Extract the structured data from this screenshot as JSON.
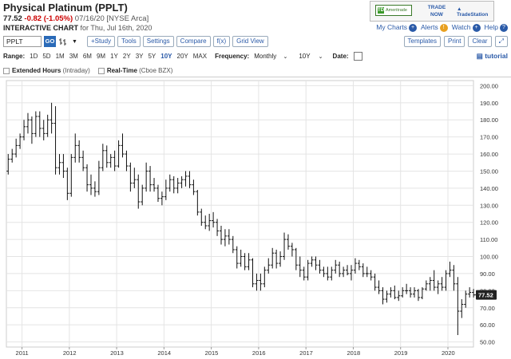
{
  "header": {
    "title": "Physical Platinum (PPLT)",
    "last_price": "77.52",
    "change": "-0.82 (-1.05%)",
    "date_exchange": "07/16/20 [NYSE Arca]",
    "chart_label": "INTERACTIVE CHART",
    "chart_date": "for Thu, Jul 16th, 2020"
  },
  "ad": {
    "td_text": "Ameritrade",
    "td_mark": "TD",
    "trade_now": "TRADE NOW",
    "tradestation": "TradeStation"
  },
  "toplinks": {
    "my_charts": "My Charts",
    "alerts": "Alerts",
    "watch": "Watch",
    "help": "Help"
  },
  "toolbar": {
    "symbol_value": "PPLT",
    "go": "GO",
    "study": "+Study",
    "tools": "Tools",
    "settings": "Settings",
    "compare": "Compare",
    "fx": "f(x)",
    "grid_view": "Grid View",
    "templates": "Templates",
    "print": "Print",
    "clear": "Clear"
  },
  "range_bar": {
    "range_label": "Range:",
    "ranges": [
      "1D",
      "5D",
      "1M",
      "3M",
      "6M",
      "9M",
      "1Y",
      "2Y",
      "3Y",
      "5Y",
      "10Y",
      "20Y",
      "MAX"
    ],
    "active_range": "10Y",
    "frequency_label": "Frequency:",
    "frequency_value": "Monthly",
    "period_value": "10Y",
    "date_label": "Date:",
    "tutorial": "tutorial"
  },
  "options_bar": {
    "extended_label": "Extended Hours",
    "extended_note": "(Intraday)",
    "realtime_label": "Real-Time",
    "realtime_note": "(Cboe BZX)"
  },
  "colors": {
    "link_blue": "#2a5aa8",
    "negative_red": "#cc0000",
    "price_tag": "#222222",
    "bar_color": "#111111"
  },
  "chart_data": {
    "type": "ohlc",
    "frequency": "Monthly",
    "last_price": 77.52,
    "yticks": [
      50,
      60,
      70,
      80,
      90,
      100,
      110,
      120,
      130,
      140,
      150,
      160,
      170,
      180,
      190,
      200
    ],
    "ylim": [
      47,
      203
    ],
    "xticks": [
      "2011",
      "2012",
      "2013",
      "2014",
      "2015",
      "2016",
      "2017",
      "2018",
      "2019",
      "2020"
    ],
    "start_year": 2010.67,
    "end_year": 2020.54,
    "grid": true,
    "bars": [
      {
        "t": "2010-09",
        "o": 150,
        "h": 160,
        "l": 148,
        "c": 157
      },
      {
        "t": "2010-10",
        "o": 157,
        "h": 163,
        "l": 155,
        "c": 160
      },
      {
        "t": "2010-11",
        "o": 160,
        "h": 169,
        "l": 158,
        "c": 165
      },
      {
        "t": "2010-12",
        "o": 165,
        "h": 172,
        "l": 163,
        "c": 170
      },
      {
        "t": "2011-01",
        "o": 170,
        "h": 180,
        "l": 168,
        "c": 176
      },
      {
        "t": "2011-02",
        "o": 176,
        "h": 184,
        "l": 172,
        "c": 180
      },
      {
        "t": "2011-03",
        "o": 180,
        "h": 182,
        "l": 166,
        "c": 172
      },
      {
        "t": "2011-04",
        "o": 172,
        "h": 185,
        "l": 170,
        "c": 182
      },
      {
        "t": "2011-05",
        "o": 182,
        "h": 185,
        "l": 170,
        "c": 175
      },
      {
        "t": "2011-06",
        "o": 175,
        "h": 180,
        "l": 168,
        "c": 172
      },
      {
        "t": "2011-07",
        "o": 172,
        "h": 183,
        "l": 170,
        "c": 180
      },
      {
        "t": "2011-08",
        "o": 180,
        "h": 190,
        "l": 172,
        "c": 178
      },
      {
        "t": "2011-09",
        "o": 178,
        "h": 188,
        "l": 148,
        "c": 152
      },
      {
        "t": "2011-10",
        "o": 152,
        "h": 160,
        "l": 148,
        "c": 155
      },
      {
        "t": "2011-11",
        "o": 155,
        "h": 160,
        "l": 146,
        "c": 150
      },
      {
        "t": "2011-12",
        "o": 150,
        "h": 152,
        "l": 133,
        "c": 137
      },
      {
        "t": "2012-01",
        "o": 137,
        "h": 160,
        "l": 135,
        "c": 158
      },
      {
        "t": "2012-02",
        "o": 158,
        "h": 172,
        "l": 155,
        "c": 165
      },
      {
        "t": "2012-03",
        "o": 165,
        "h": 168,
        "l": 155,
        "c": 158
      },
      {
        "t": "2012-04",
        "o": 158,
        "h": 162,
        "l": 150,
        "c": 152
      },
      {
        "t": "2012-05",
        "o": 152,
        "h": 154,
        "l": 138,
        "c": 142
      },
      {
        "t": "2012-06",
        "o": 142,
        "h": 148,
        "l": 136,
        "c": 140
      },
      {
        "t": "2012-07",
        "o": 140,
        "h": 144,
        "l": 135,
        "c": 138
      },
      {
        "t": "2012-08",
        "o": 138,
        "h": 156,
        "l": 136,
        "c": 152
      },
      {
        "t": "2012-09",
        "o": 152,
        "h": 166,
        "l": 150,
        "c": 162
      },
      {
        "t": "2012-10",
        "o": 162,
        "h": 165,
        "l": 152,
        "c": 155
      },
      {
        "t": "2012-11",
        "o": 155,
        "h": 160,
        "l": 152,
        "c": 158
      },
      {
        "t": "2012-12",
        "o": 158,
        "h": 162,
        "l": 150,
        "c": 153
      },
      {
        "t": "2013-01",
        "o": 153,
        "h": 168,
        "l": 152,
        "c": 165
      },
      {
        "t": "2013-02",
        "o": 165,
        "h": 172,
        "l": 158,
        "c": 160
      },
      {
        "t": "2013-03",
        "o": 160,
        "h": 162,
        "l": 150,
        "c": 153
      },
      {
        "t": "2013-04",
        "o": 153,
        "h": 155,
        "l": 138,
        "c": 143
      },
      {
        "t": "2013-05",
        "o": 143,
        "h": 152,
        "l": 140,
        "c": 145
      },
      {
        "t": "2013-06",
        "o": 145,
        "h": 148,
        "l": 128,
        "c": 132
      },
      {
        "t": "2013-07",
        "o": 132,
        "h": 142,
        "l": 130,
        "c": 140
      },
      {
        "t": "2013-08",
        "o": 140,
        "h": 155,
        "l": 138,
        "c": 150
      },
      {
        "t": "2013-09",
        "o": 150,
        "h": 153,
        "l": 138,
        "c": 142
      },
      {
        "t": "2013-10",
        "o": 142,
        "h": 146,
        "l": 138,
        "c": 140
      },
      {
        "t": "2013-11",
        "o": 140,
        "h": 142,
        "l": 132,
        "c": 134
      },
      {
        "t": "2013-12",
        "o": 134,
        "h": 138,
        "l": 130,
        "c": 135
      },
      {
        "t": "2014-01",
        "o": 135,
        "h": 145,
        "l": 133,
        "c": 140
      },
      {
        "t": "2014-02",
        "o": 140,
        "h": 148,
        "l": 138,
        "c": 145
      },
      {
        "t": "2014-03",
        "o": 145,
        "h": 147,
        "l": 137,
        "c": 140
      },
      {
        "t": "2014-04",
        "o": 140,
        "h": 146,
        "l": 137,
        "c": 143
      },
      {
        "t": "2014-05",
        "o": 143,
        "h": 147,
        "l": 140,
        "c": 145
      },
      {
        "t": "2014-06",
        "o": 145,
        "h": 150,
        "l": 141,
        "c": 147
      },
      {
        "t": "2014-07",
        "o": 147,
        "h": 150,
        "l": 140,
        "c": 142
      },
      {
        "t": "2014-08",
        "o": 142,
        "h": 145,
        "l": 136,
        "c": 138
      },
      {
        "t": "2014-09",
        "o": 138,
        "h": 139,
        "l": 124,
        "c": 126
      },
      {
        "t": "2014-10",
        "o": 126,
        "h": 128,
        "l": 118,
        "c": 120
      },
      {
        "t": "2014-11",
        "o": 120,
        "h": 124,
        "l": 116,
        "c": 118
      },
      {
        "t": "2014-12",
        "o": 118,
        "h": 125,
        "l": 115,
        "c": 121
      },
      {
        "t": "2015-01",
        "o": 121,
        "h": 126,
        "l": 117,
        "c": 120
      },
      {
        "t": "2015-02",
        "o": 120,
        "h": 122,
        "l": 112,
        "c": 115
      },
      {
        "t": "2015-03",
        "o": 115,
        "h": 118,
        "l": 107,
        "c": 110
      },
      {
        "t": "2015-04",
        "o": 110,
        "h": 116,
        "l": 106,
        "c": 112
      },
      {
        "t": "2015-05",
        "o": 112,
        "h": 116,
        "l": 107,
        "c": 110
      },
      {
        "t": "2015-06",
        "o": 110,
        "h": 112,
        "l": 102,
        "c": 104
      },
      {
        "t": "2015-07",
        "o": 104,
        "h": 106,
        "l": 93,
        "c": 96
      },
      {
        "t": "2015-08",
        "o": 96,
        "h": 104,
        "l": 94,
        "c": 100
      },
      {
        "t": "2015-09",
        "o": 100,
        "h": 102,
        "l": 92,
        "c": 94
      },
      {
        "t": "2015-10",
        "o": 94,
        "h": 102,
        "l": 92,
        "c": 98
      },
      {
        "t": "2015-11",
        "o": 98,
        "h": 99,
        "l": 82,
        "c": 84
      },
      {
        "t": "2015-12",
        "o": 84,
        "h": 90,
        "l": 80,
        "c": 86
      },
      {
        "t": "2016-01",
        "o": 86,
        "h": 90,
        "l": 80,
        "c": 84
      },
      {
        "t": "2016-02",
        "o": 84,
        "h": 94,
        "l": 82,
        "c": 92
      },
      {
        "t": "2016-03",
        "o": 92,
        "h": 99,
        "l": 90,
        "c": 95
      },
      {
        "t": "2016-04",
        "o": 95,
        "h": 105,
        "l": 93,
        "c": 102
      },
      {
        "t": "2016-05",
        "o": 102,
        "h": 104,
        "l": 93,
        "c": 96
      },
      {
        "t": "2016-06",
        "o": 96,
        "h": 103,
        "l": 94,
        "c": 100
      },
      {
        "t": "2016-07",
        "o": 100,
        "h": 114,
        "l": 98,
        "c": 110
      },
      {
        "t": "2016-08",
        "o": 110,
        "h": 113,
        "l": 104,
        "c": 106
      },
      {
        "t": "2016-09",
        "o": 106,
        "h": 108,
        "l": 100,
        "c": 104
      },
      {
        "t": "2016-10",
        "o": 104,
        "h": 105,
        "l": 92,
        "c": 95
      },
      {
        "t": "2016-11",
        "o": 95,
        "h": 100,
        "l": 88,
        "c": 92
      },
      {
        "t": "2016-12",
        "o": 92,
        "h": 94,
        "l": 86,
        "c": 88
      },
      {
        "t": "2017-01",
        "o": 88,
        "h": 98,
        "l": 86,
        "c": 96
      },
      {
        "t": "2017-02",
        "o": 96,
        "h": 100,
        "l": 94,
        "c": 98
      },
      {
        "t": "2017-03",
        "o": 98,
        "h": 100,
        "l": 92,
        "c": 95
      },
      {
        "t": "2017-04",
        "o": 95,
        "h": 98,
        "l": 90,
        "c": 92
      },
      {
        "t": "2017-05",
        "o": 92,
        "h": 94,
        "l": 88,
        "c": 90
      },
      {
        "t": "2017-06",
        "o": 90,
        "h": 94,
        "l": 86,
        "c": 88
      },
      {
        "t": "2017-07",
        "o": 88,
        "h": 94,
        "l": 86,
        "c": 92
      },
      {
        "t": "2017-08",
        "o": 92,
        "h": 98,
        "l": 90,
        "c": 95
      },
      {
        "t": "2017-09",
        "o": 95,
        "h": 97,
        "l": 88,
        "c": 90
      },
      {
        "t": "2017-10",
        "o": 90,
        "h": 94,
        "l": 88,
        "c": 92
      },
      {
        "t": "2017-11",
        "o": 92,
        "h": 95,
        "l": 89,
        "c": 90
      },
      {
        "t": "2017-12",
        "o": 90,
        "h": 95,
        "l": 86,
        "c": 92
      },
      {
        "t": "2018-01",
        "o": 92,
        "h": 99,
        "l": 90,
        "c": 96
      },
      {
        "t": "2018-02",
        "o": 96,
        "h": 98,
        "l": 92,
        "c": 94
      },
      {
        "t": "2018-03",
        "o": 94,
        "h": 96,
        "l": 88,
        "c": 90
      },
      {
        "t": "2018-04",
        "o": 90,
        "h": 94,
        "l": 88,
        "c": 90
      },
      {
        "t": "2018-05",
        "o": 90,
        "h": 92,
        "l": 86,
        "c": 88
      },
      {
        "t": "2018-06",
        "o": 88,
        "h": 90,
        "l": 80,
        "c": 82
      },
      {
        "t": "2018-07",
        "o": 82,
        "h": 86,
        "l": 78,
        "c": 80
      },
      {
        "t": "2018-08",
        "o": 80,
        "h": 82,
        "l": 72,
        "c": 75
      },
      {
        "t": "2018-09",
        "o": 75,
        "h": 80,
        "l": 73,
        "c": 78
      },
      {
        "t": "2018-10",
        "o": 78,
        "h": 82,
        "l": 76,
        "c": 80
      },
      {
        "t": "2018-11",
        "o": 80,
        "h": 83,
        "l": 75,
        "c": 76
      },
      {
        "t": "2018-12",
        "o": 76,
        "h": 80,
        "l": 74,
        "c": 77
      },
      {
        "t": "2019-01",
        "o": 77,
        "h": 82,
        "l": 76,
        "c": 80
      },
      {
        "t": "2019-02",
        "o": 80,
        "h": 84,
        "l": 78,
        "c": 80
      },
      {
        "t": "2019-03",
        "o": 80,
        "h": 82,
        "l": 76,
        "c": 78
      },
      {
        "t": "2019-04",
        "o": 78,
        "h": 82,
        "l": 76,
        "c": 80
      },
      {
        "t": "2019-05",
        "o": 80,
        "h": 81,
        "l": 74,
        "c": 76
      },
      {
        "t": "2019-06",
        "o": 76,
        "h": 82,
        "l": 75,
        "c": 81
      },
      {
        "t": "2019-07",
        "o": 81,
        "h": 86,
        "l": 80,
        "c": 84
      },
      {
        "t": "2019-08",
        "o": 84,
        "h": 88,
        "l": 80,
        "c": 86
      },
      {
        "t": "2019-09",
        "o": 86,
        "h": 92,
        "l": 80,
        "c": 82
      },
      {
        "t": "2019-10",
        "o": 82,
        "h": 86,
        "l": 78,
        "c": 84
      },
      {
        "t": "2019-11",
        "o": 84,
        "h": 88,
        "l": 80,
        "c": 82
      },
      {
        "t": "2019-12",
        "o": 82,
        "h": 92,
        "l": 80,
        "c": 90
      },
      {
        "t": "2020-01",
        "o": 90,
        "h": 97,
        "l": 88,
        "c": 92
      },
      {
        "t": "2020-02",
        "o": 92,
        "h": 95,
        "l": 80,
        "c": 84
      },
      {
        "t": "2020-03",
        "o": 84,
        "h": 88,
        "l": 54,
        "c": 68
      },
      {
        "t": "2020-04",
        "o": 68,
        "h": 75,
        "l": 64,
        "c": 72
      },
      {
        "t": "2020-05",
        "o": 72,
        "h": 80,
        "l": 70,
        "c": 78
      },
      {
        "t": "2020-06",
        "o": 78,
        "h": 82,
        "l": 76,
        "c": 79
      },
      {
        "t": "2020-07",
        "o": 79,
        "h": 81,
        "l": 76,
        "c": 77.52
      }
    ]
  }
}
